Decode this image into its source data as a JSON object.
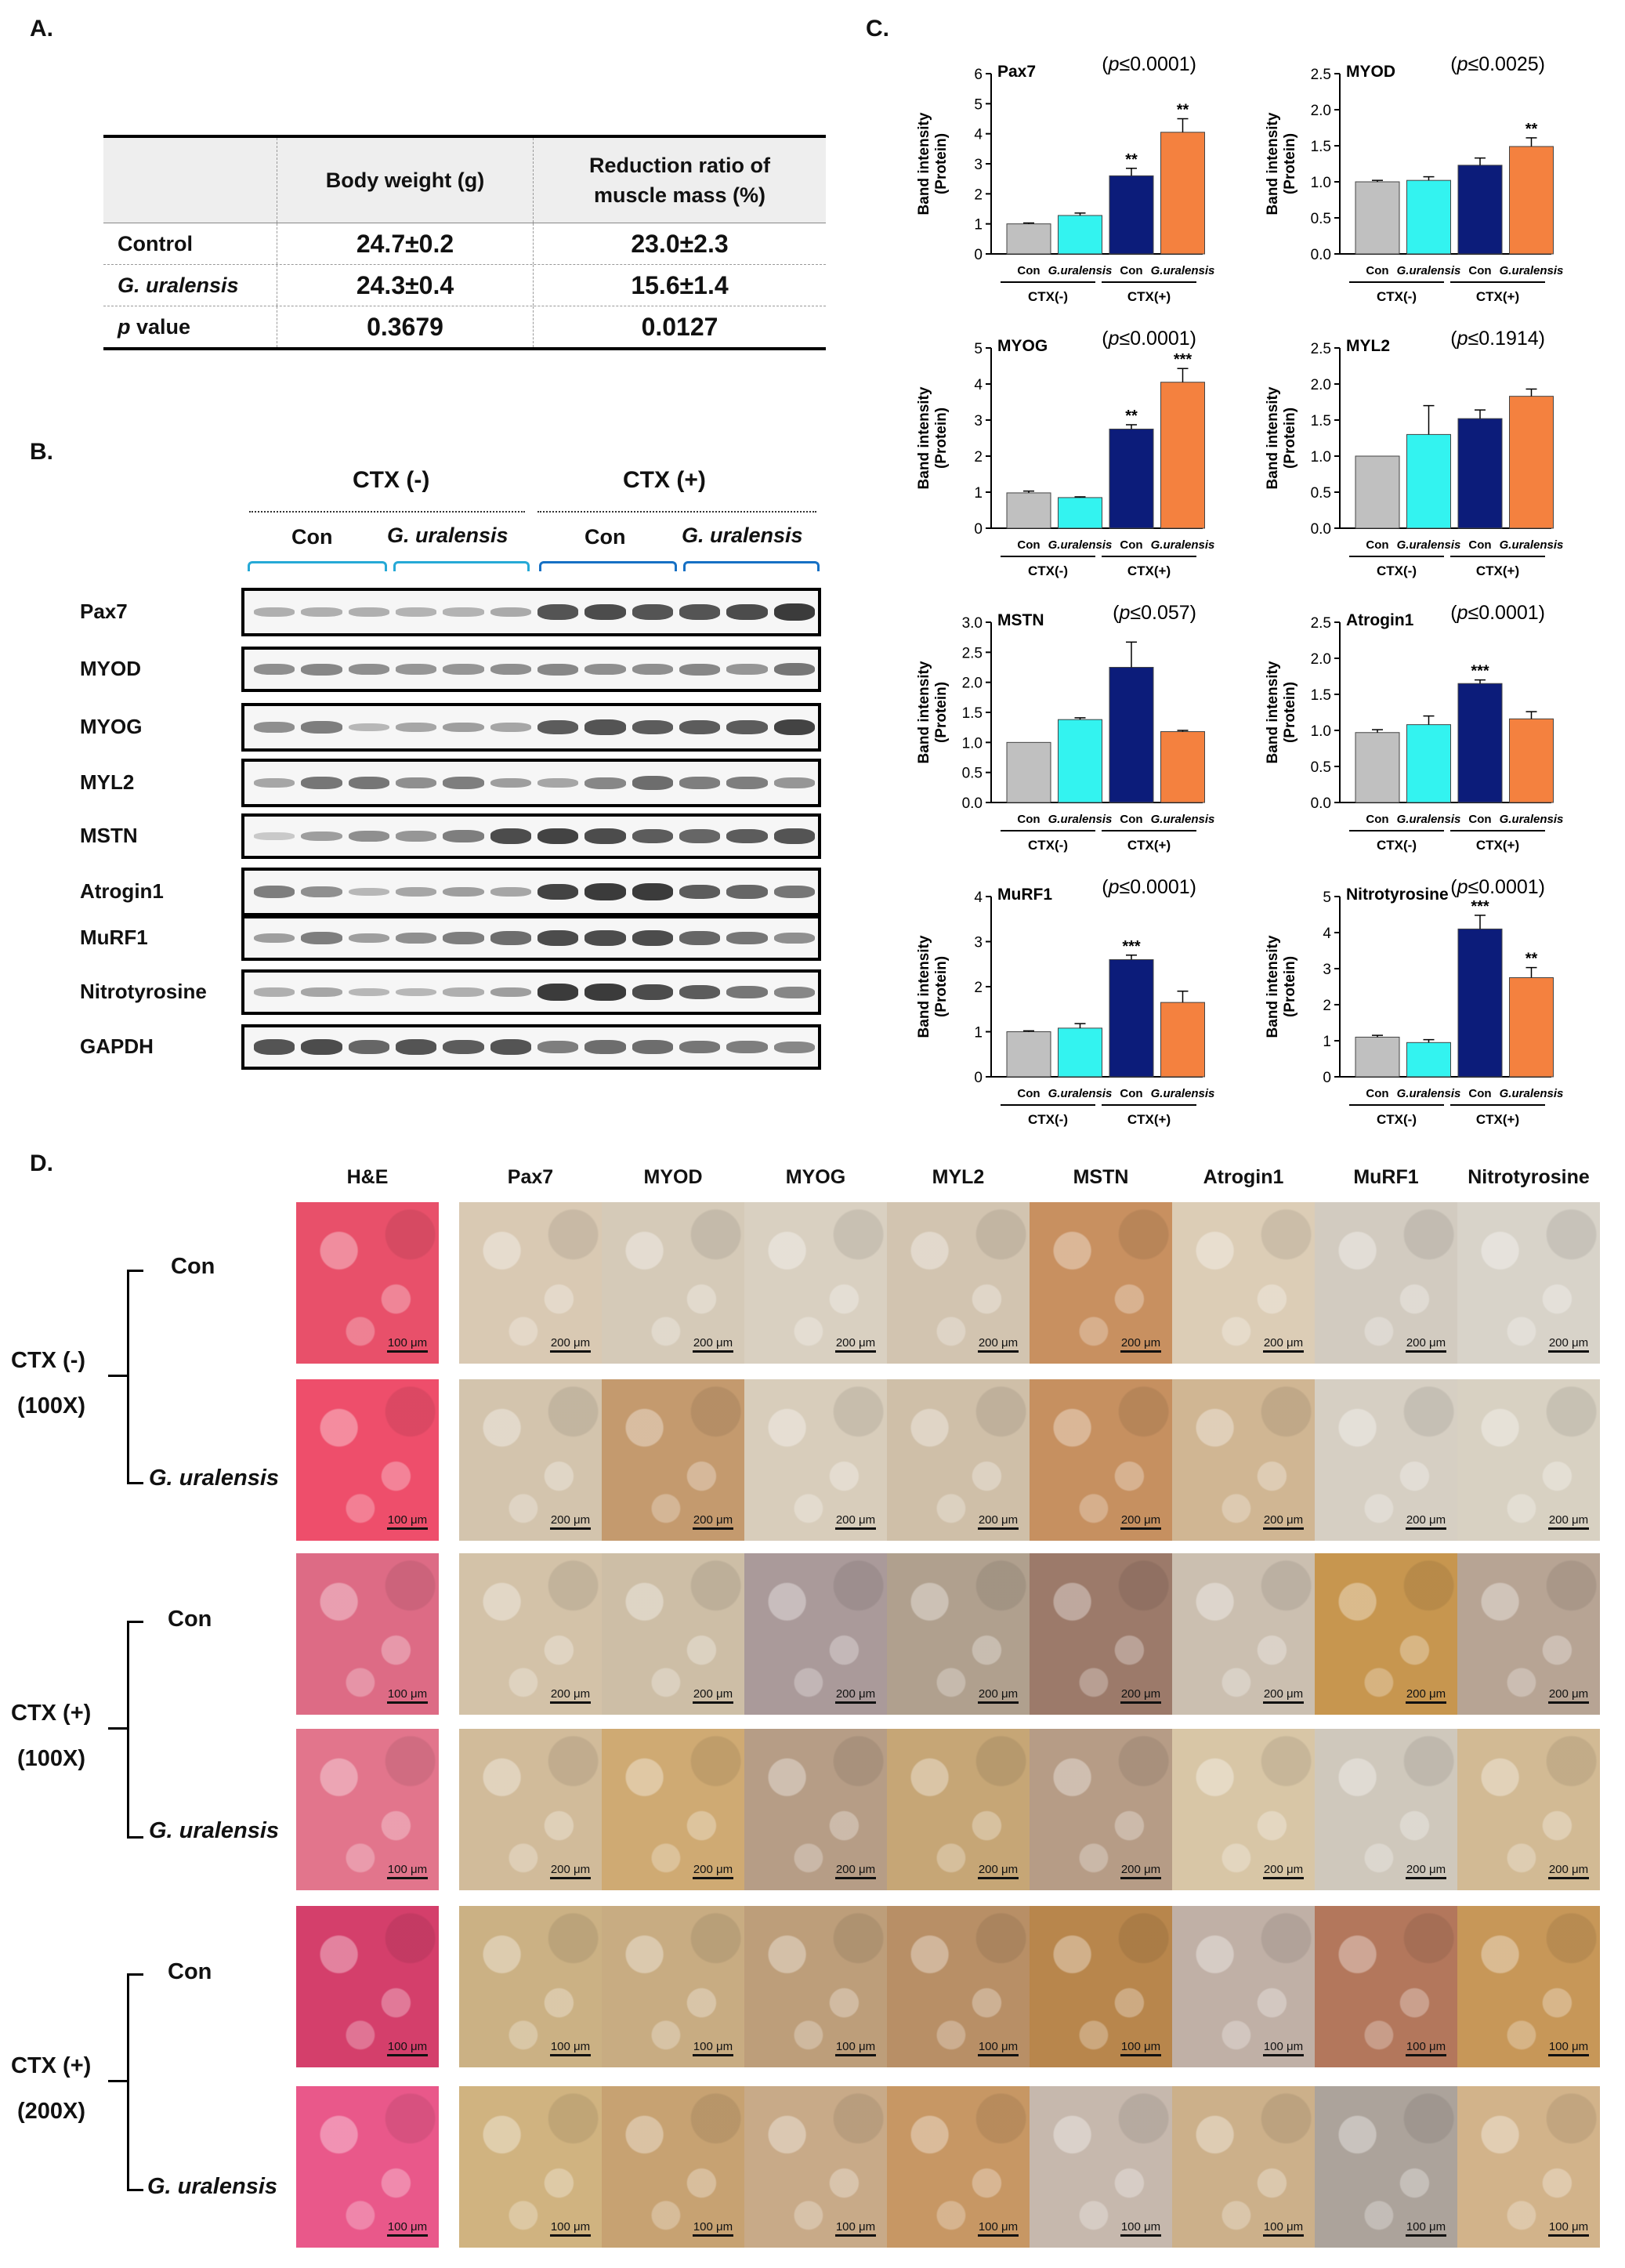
{
  "panel_labels": {
    "a": "A.",
    "b": "B.",
    "c": "C.",
    "d": "D."
  },
  "table_a": {
    "headers": [
      "",
      "Body weight (g)",
      "Reduction ratio of muscle mass (%)"
    ],
    "rows": [
      {
        "label": "Control",
        "italic": false,
        "bw": "24.7±0.2",
        "ratio": "23.0±2.3"
      },
      {
        "label": "G. uralensis",
        "italic": true,
        "bw": "24.3±0.4",
        "ratio": "15.6±1.4"
      },
      {
        "label_italic_part": "p",
        "label_rest": " value",
        "bw": "0.3679",
        "ratio": "0.0127"
      }
    ]
  },
  "blot": {
    "groups": [
      "CTX (-)",
      "CTX (+)"
    ],
    "subgroups": [
      "Con",
      "G. uralensis",
      "Con",
      "G. uralensis"
    ],
    "proteins": [
      "Pax7",
      "MYOD",
      "MYOG",
      "MYL2",
      "MSTN",
      "Atrogin1",
      "MuRF1",
      "Nitrotyrosine",
      "GAPDH"
    ],
    "intensities": [
      [
        0.25,
        0.25,
        0.25,
        0.22,
        0.22,
        0.28,
        0.8,
        0.85,
        0.8,
        0.8,
        0.85,
        0.95
      ],
      [
        0.45,
        0.5,
        0.45,
        0.4,
        0.4,
        0.45,
        0.5,
        0.45,
        0.45,
        0.5,
        0.4,
        0.6
      ],
      [
        0.45,
        0.55,
        0.2,
        0.3,
        0.35,
        0.3,
        0.75,
        0.8,
        0.75,
        0.75,
        0.75,
        0.9
      ],
      [
        0.3,
        0.6,
        0.6,
        0.45,
        0.55,
        0.35,
        0.3,
        0.5,
        0.65,
        0.55,
        0.55,
        0.4
      ],
      [
        0.1,
        0.35,
        0.45,
        0.4,
        0.55,
        0.85,
        0.9,
        0.85,
        0.75,
        0.7,
        0.75,
        0.8
      ],
      [
        0.55,
        0.45,
        0.2,
        0.3,
        0.35,
        0.3,
        0.9,
        0.95,
        0.95,
        0.75,
        0.7,
        0.6
      ],
      [
        0.35,
        0.55,
        0.35,
        0.45,
        0.55,
        0.65,
        0.85,
        0.85,
        0.85,
        0.7,
        0.6,
        0.45
      ],
      [
        0.25,
        0.3,
        0.2,
        0.2,
        0.25,
        0.35,
        0.95,
        0.95,
        0.85,
        0.75,
        0.6,
        0.5
      ],
      [
        0.8,
        0.85,
        0.7,
        0.8,
        0.75,
        0.8,
        0.55,
        0.65,
        0.65,
        0.6,
        0.55,
        0.5
      ]
    ]
  },
  "chart_common": {
    "ylabel_line1": "Band intensity",
    "ylabel_line2": "(Protein)",
    "categories": [
      "Con",
      "G.uralensis",
      "Con",
      "G.uralensis"
    ],
    "group_labels": [
      "CTX(-)",
      "CTX(+)"
    ],
    "colors": [
      "#c0c0c0",
      "#33f3f0",
      "#0c1c7a",
      "#f4813f"
    ]
  },
  "chart_data": [
    {
      "type": "bar",
      "title": "Pax7",
      "pvalue": "p≤0.0001",
      "values": [
        1.0,
        1.28,
        2.6,
        4.05
      ],
      "errors": [
        0.03,
        0.08,
        0.25,
        0.45
      ],
      "stars": [
        "",
        "",
        "**",
        "**"
      ],
      "ylim": [
        0,
        6
      ],
      "ticks": [
        "0",
        "1",
        "2",
        "3",
        "4",
        "5",
        "6"
      ]
    },
    {
      "type": "bar",
      "title": "MYOD",
      "pvalue": "p≤0.0025",
      "values": [
        1.0,
        1.02,
        1.23,
        1.49
      ],
      "errors": [
        0.02,
        0.05,
        0.1,
        0.12
      ],
      "stars": [
        "",
        "",
        "",
        "**"
      ],
      "ylim": [
        0,
        2.5
      ],
      "ticks": [
        "0.0",
        "0.5",
        "1.0",
        "1.5",
        "2.0",
        "2.5"
      ]
    },
    {
      "type": "bar",
      "title": "MYOG",
      "pvalue": "p≤0.0001",
      "values": [
        0.98,
        0.85,
        2.75,
        4.05
      ],
      "errors": [
        0.05,
        0.02,
        0.12,
        0.38
      ],
      "stars": [
        "",
        "",
        "**",
        "***"
      ],
      "ylim": [
        0,
        5
      ],
      "ticks": [
        "0",
        "1",
        "2",
        "3",
        "4",
        "5"
      ]
    },
    {
      "type": "bar",
      "title": "MYL2",
      "pvalue": "p≤0.1914",
      "values": [
        1.0,
        1.3,
        1.52,
        1.83
      ],
      "errors": [
        0,
        0.4,
        0.12,
        0.1
      ],
      "stars": [
        "",
        "",
        "",
        ""
      ],
      "ylim": [
        0,
        2.5
      ],
      "ticks": [
        "0.0",
        "0.5",
        "1.0",
        "1.5",
        "2.0",
        "2.5"
      ]
    },
    {
      "type": "bar",
      "title": "MSTN",
      "pvalue": "p≤0.057",
      "values": [
        1.0,
        1.38,
        2.25,
        1.18
      ],
      "errors": [
        0,
        0.03,
        0.42,
        0.02
      ],
      "stars": [
        "",
        "",
        "",
        ""
      ],
      "ylim": [
        0,
        3
      ],
      "ticks": [
        "0.0",
        "0.5",
        "1.0",
        "1.5",
        "2.0",
        "2.5",
        "3.0"
      ]
    },
    {
      "type": "bar",
      "title": "Atrogin1",
      "pvalue": "p≤0.0001",
      "values": [
        0.97,
        1.08,
        1.65,
        1.16
      ],
      "errors": [
        0.04,
        0.12,
        0.05,
        0.1
      ],
      "stars": [
        "",
        "",
        "***",
        ""
      ],
      "ylim": [
        0,
        2.5
      ],
      "ticks": [
        "0.0",
        "0.5",
        "1.0",
        "1.5",
        "2.0",
        "2.5"
      ]
    },
    {
      "type": "bar",
      "title": "MuRF1",
      "pvalue": "p≤0.0001",
      "values": [
        1.0,
        1.08,
        2.6,
        1.65
      ],
      "errors": [
        0.02,
        0.1,
        0.1,
        0.25
      ],
      "stars": [
        "",
        "",
        "***",
        ""
      ],
      "ylim": [
        0,
        4
      ],
      "ticks": [
        "0",
        "1",
        "2",
        "3",
        "4"
      ]
    },
    {
      "type": "bar",
      "title": "Nitrotyrosine",
      "pvalue": "p≤0.0001",
      "values": [
        1.1,
        0.95,
        4.1,
        2.75
      ],
      "errors": [
        0.05,
        0.08,
        0.38,
        0.28
      ],
      "stars": [
        "",
        "",
        "***",
        "**"
      ],
      "ylim": [
        0,
        5
      ],
      "ticks": [
        "0",
        "1",
        "2",
        "3",
        "4",
        "5"
      ]
    }
  ],
  "histology": {
    "columns": [
      "H&E",
      "Pax7",
      "MYOD",
      "MYOG",
      "MYL2",
      "MSTN",
      "Atrogin1",
      "MuRF1",
      "Nitrotyrosine"
    ],
    "rows": [
      {
        "scale": [
          "100 μm",
          "200 μm",
          "200 μm",
          "200 μm",
          "200 μm",
          "200 μm",
          "200 μm",
          "200 μm",
          "200 μm"
        ]
      },
      {
        "scale": [
          "100 μm",
          "200 μm",
          "200 μm",
          "200 μm",
          "200 μm",
          "200 μm",
          "200 μm",
          "200 μm",
          "200 μm"
        ]
      },
      {
        "scale": [
          "100 μm",
          "200 μm",
          "200 μm",
          "200 μm",
          "200 μm",
          "200 μm",
          "200 μm",
          "200 μm",
          "200 μm"
        ]
      },
      {
        "scale": [
          "100 μm",
          "200 μm",
          "200 μm",
          "200 μm",
          "200 μm",
          "200 μm",
          "200 μm",
          "200 μm",
          "200 μm"
        ]
      },
      {
        "scale": [
          "100 μm",
          "100 μm",
          "100 μm",
          "100 μm",
          "100 μm",
          "100 μm",
          "100 μm",
          "100 μm",
          "100 μm"
        ]
      },
      {
        "scale": [
          "100 μm",
          "100 μm",
          "100 μm",
          "100 μm",
          "100 μm",
          "100 μm",
          "100 μm",
          "100 μm",
          "100 μm"
        ]
      }
    ],
    "row_labels": [
      "Con",
      "G. uralensis",
      "Con",
      "G. uralensis",
      "Con",
      "G. uralensis"
    ],
    "group_labels": [
      {
        "line1": "CTX (-)",
        "line2": "(100X)"
      },
      {
        "line1": "CTX (+)",
        "line2": "(100X)"
      },
      {
        "line1": "CTX (+)",
        "line2": "(200X)"
      }
    ],
    "tile_colors": [
      [
        "#e8506a",
        "#d9c9b3",
        "#d5cab8",
        "#d9d0c1",
        "#d2c4b0",
        "#c89060",
        "#dccdb6",
        "#d2cbc0",
        "#d8d3c9"
      ],
      [
        "#ee4e6b",
        "#d3c4ad",
        "#c49a6e",
        "#d8cdbb",
        "#cfbfa8",
        "#c69060",
        "#d0b693",
        "#d6cfc3",
        "#d8d1c2"
      ],
      [
        "#dd6b85",
        "#d3c2a8",
        "#cdbea6",
        "#aa9a9a",
        "#b0a08e",
        "#9c7a6a",
        "#cbbfb0",
        "#c7964f",
        "#b7a494"
      ],
      [
        "#e2758c",
        "#d1bb9a",
        "#cfaa73",
        "#b69d86",
        "#c6a676",
        "#b69c86",
        "#d8c6a6",
        "#cfc8bc",
        "#d2ba94"
      ],
      [
        "#d43f6b",
        "#cbb184",
        "#c8ac82",
        "#bd9e7a",
        "#b88f66",
        "#b8864c",
        "#c0b0a6",
        "#b3775c",
        "#c79758"
      ],
      [
        "#e9588a",
        "#d0b380",
        "#c7a272",
        "#c8aa88",
        "#c79764",
        "#c6b8ad",
        "#ccb08a",
        "#aca39b",
        "#d2b38a"
      ]
    ]
  }
}
